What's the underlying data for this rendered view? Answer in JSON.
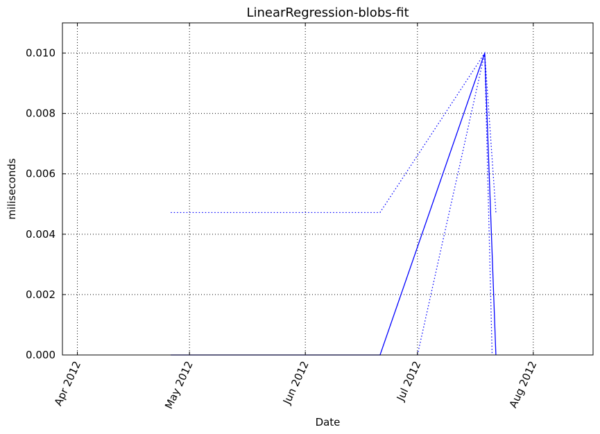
{
  "chart_data": {
    "type": "line",
    "title": "LinearRegression-blobs-fit",
    "xlabel": "Date",
    "ylabel": "miliseconds",
    "x_axis": "date",
    "xlim": [
      "2012-03-28",
      "2012-08-17"
    ],
    "ylim": [
      0,
      0.011
    ],
    "x_ticks": [
      {
        "date": "2012-04-01",
        "label": "Apr 2012"
      },
      {
        "date": "2012-05-01",
        "label": "May 2012"
      },
      {
        "date": "2012-06-01",
        "label": "Jun 2012"
      },
      {
        "date": "2012-07-01",
        "label": "Jul 2012"
      },
      {
        "date": "2012-08-01",
        "label": "Aug 2012"
      }
    ],
    "y_ticks": [
      {
        "value": 0.0,
        "label": "0.000"
      },
      {
        "value": 0.002,
        "label": "0.002"
      },
      {
        "value": 0.004,
        "label": "0.004"
      },
      {
        "value": 0.006,
        "label": "0.006"
      },
      {
        "value": 0.008,
        "label": "0.008"
      },
      {
        "value": 0.01,
        "label": "0.010"
      }
    ],
    "grid": true,
    "series": [
      {
        "style": "solid",
        "color": "#0000ff",
        "points": [
          {
            "x": "2012-04-26",
            "y": 0.0
          },
          {
            "x": "2012-06-21",
            "y": 0.0
          },
          {
            "x": "2012-07-19",
            "y": 0.01
          },
          {
            "x": "2012-07-22",
            "y": 0.0
          }
        ]
      },
      {
        "style": "dotted",
        "color": "#0000ff",
        "points": [
          {
            "x": "2012-04-26",
            "y": 0.00472
          },
          {
            "x": "2012-06-21",
            "y": 0.00472
          },
          {
            "x": "2012-07-19",
            "y": 0.01
          },
          {
            "x": "2012-07-22",
            "y": 0.00472
          }
        ]
      },
      {
        "style": "dotted",
        "color": "#0000ff",
        "points": [
          {
            "x": "2012-07-01",
            "y": 0.0
          },
          {
            "x": "2012-07-19",
            "y": 0.01
          },
          {
            "x": "2012-07-21",
            "y": 0.0
          }
        ]
      }
    ]
  }
}
